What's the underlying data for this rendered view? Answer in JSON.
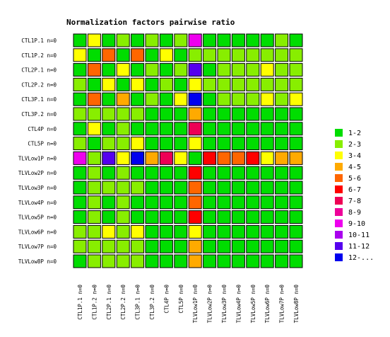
{
  "chart_data": {
    "type": "heatmap",
    "title": "Normalization factors pairwise ratio",
    "row_labels": [
      "CTL1P.1 n=0",
      "CTL1P.2 n=0",
      "CTL2P.1 n=0",
      "CTL2P.2 n=0",
      "CTL3P.1 n=0",
      "CTL3P.2 n=0",
      "CTL4P n=0",
      "CTL5P n=0",
      "TLVLow1P n=0",
      "TLVLow2P n=0",
      "TLVLow3P n=0",
      "TLVLow4P n=0",
      "TLVLow5P n=0",
      "TLVLow6P n=0",
      "TLVLow7P n=0",
      "TLVLow8P n=0"
    ],
    "col_labels": [
      "CTL1P.1 n=0",
      "CTL1P.2 n=0",
      "CTL2P.1 n=0",
      "CTL2P.2 n=0",
      "CTL3P.1 n=0",
      "CTL3P.2 n=0",
      "CTL4P n=0",
      "CTL5P n=0",
      "TLVLow1P n=0",
      "TLVLow2P n=0",
      "TLVLow3P n=0",
      "TLVLow4P n=0",
      "TLVLow5P n=0",
      "TLVLow6P n=0",
      "TLVLow7P n=0",
      "TLVLow8P n=0"
    ],
    "legend": [
      {
        "label": "1-2",
        "color": "#00dd00"
      },
      {
        "label": "2-3",
        "color": "#88ee00"
      },
      {
        "label": "3-4",
        "color": "#ffff00"
      },
      {
        "label": "4-5",
        "color": "#ffaa00"
      },
      {
        "label": "5-6",
        "color": "#ff6600"
      },
      {
        "label": "6-7",
        "color": "#ff0000"
      },
      {
        "label": "7-8",
        "color": "#ee0055"
      },
      {
        "label": "8-9",
        "color": "#ee0099"
      },
      {
        "label": "9-10",
        "color": "#ee00ee"
      },
      {
        "label": "10-11",
        "color": "#aa00ee"
      },
      {
        "label": "11-12",
        "color": "#5500ee"
      },
      {
        "label": "12-...",
        "color": "#0000ee"
      }
    ],
    "legend_position": "right",
    "matrix": [
      [
        0,
        2,
        0,
        1,
        0,
        1,
        0,
        1,
        8,
        0,
        0,
        0,
        0,
        0,
        1,
        0
      ],
      [
        2,
        0,
        4,
        0,
        4,
        0,
        2,
        0,
        1,
        1,
        1,
        1,
        1,
        1,
        1,
        1
      ],
      [
        0,
        4,
        0,
        2,
        0,
        1,
        0,
        1,
        10,
        0,
        1,
        1,
        1,
        2,
        1,
        1
      ],
      [
        1,
        0,
        2,
        0,
        2,
        0,
        1,
        0,
        2,
        1,
        1,
        1,
        1,
        1,
        1,
        1
      ],
      [
        0,
        4,
        0,
        3,
        0,
        1,
        0,
        2,
        11,
        0,
        1,
        1,
        1,
        2,
        1,
        2
      ],
      [
        1,
        1,
        1,
        1,
        1,
        0,
        0,
        0,
        3,
        0,
        0,
        0,
        0,
        0,
        0,
        0
      ],
      [
        0,
        2,
        0,
        1,
        0,
        0,
        0,
        0,
        6,
        0,
        0,
        0,
        0,
        0,
        0,
        0
      ],
      [
        1,
        0,
        1,
        1,
        2,
        0,
        0,
        0,
        2,
        0,
        0,
        0,
        0,
        0,
        0,
        0
      ],
      [
        8,
        1,
        10,
        2,
        11,
        3,
        6,
        2,
        0,
        5,
        4,
        4,
        5,
        2,
        3,
        3
      ],
      [
        0,
        1,
        0,
        1,
        0,
        0,
        0,
        0,
        5,
        0,
        0,
        0,
        0,
        0,
        0,
        0
      ],
      [
        0,
        1,
        1,
        1,
        1,
        0,
        0,
        0,
        4,
        0,
        0,
        0,
        0,
        0,
        0,
        0
      ],
      [
        0,
        1,
        0,
        1,
        0,
        0,
        0,
        0,
        4,
        0,
        0,
        0,
        0,
        0,
        0,
        0
      ],
      [
        0,
        1,
        0,
        1,
        0,
        0,
        0,
        0,
        5,
        0,
        0,
        0,
        0,
        0,
        0,
        0
      ],
      [
        1,
        1,
        2,
        1,
        2,
        0,
        0,
        0,
        2,
        0,
        0,
        0,
        0,
        0,
        0,
        0
      ],
      [
        1,
        1,
        1,
        1,
        1,
        0,
        0,
        0,
        3,
        0,
        0,
        0,
        0,
        0,
        0,
        0
      ],
      [
        0,
        1,
        1,
        1,
        1,
        0,
        0,
        0,
        3,
        0,
        0,
        0,
        0,
        0,
        0,
        0
      ]
    ]
  }
}
